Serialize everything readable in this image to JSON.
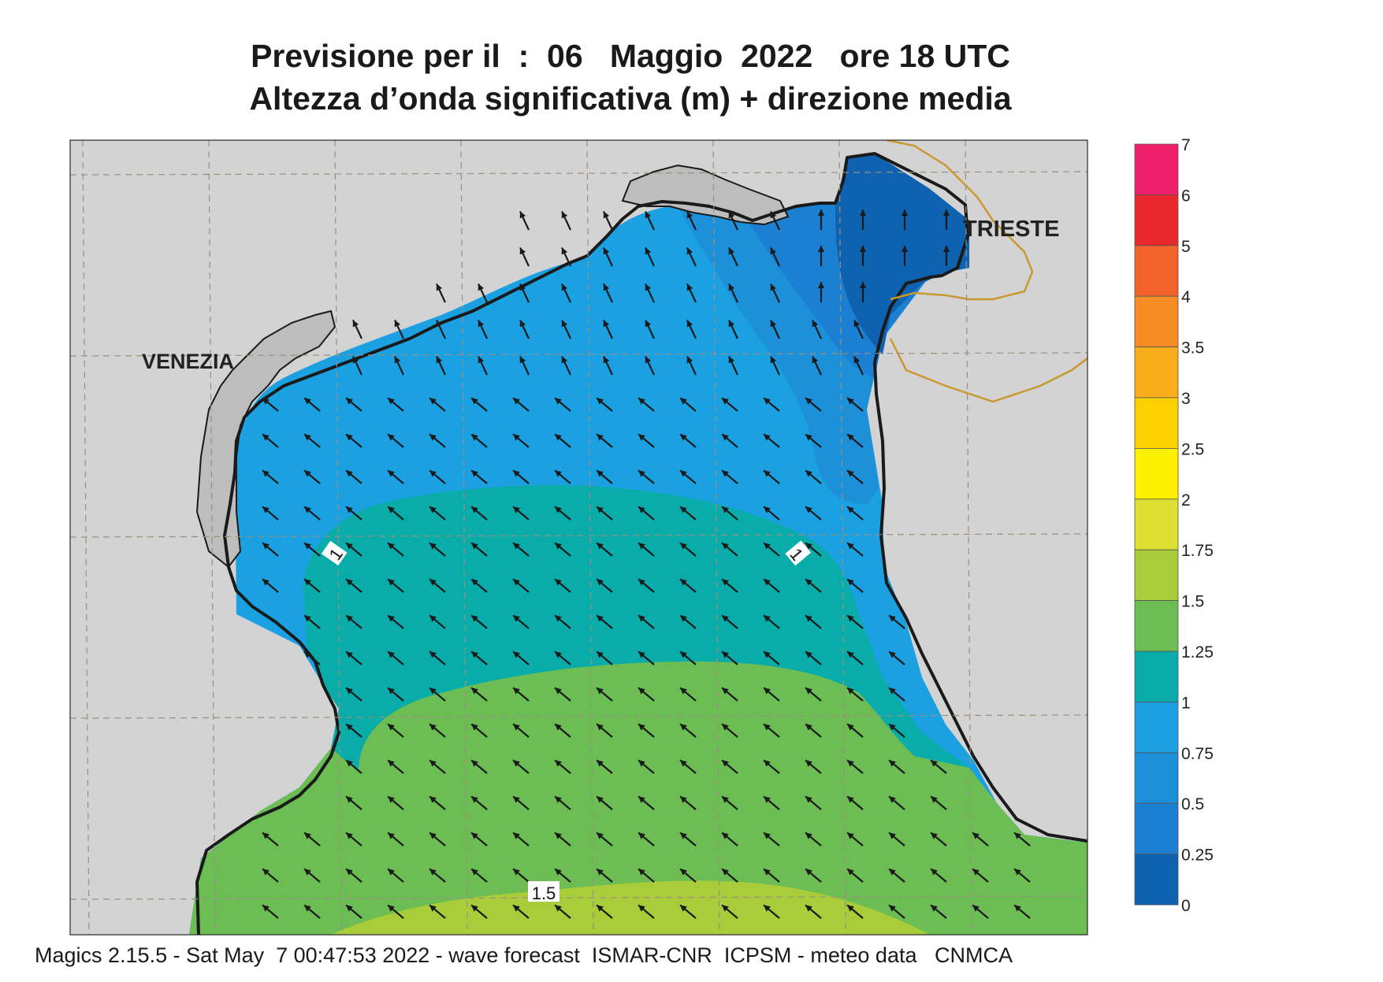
{
  "title": {
    "line1": "Previsione per il  :  06   Maggio  2022   ore 18 UTC",
    "line2": "Altezza d’onda significativa (m) + direzione media"
  },
  "map": {
    "cities": [
      "VENEZIA",
      "TRIESTE"
    ],
    "contour_labels": [
      "1",
      "1",
      "1.5"
    ],
    "colors": {
      "land": "#d3d3d3",
      "sea_0_0.25": "#0f62b0",
      "sea_0.25_0.5": "#1b80d2",
      "sea_0.5_0.75": "#1d90da",
      "sea_0.75_1": "#1ba0e2",
      "sea_1_1.25": "#0aaca9",
      "sea_1.25_1.5": "#6cbe54",
      "sea_1.5_1.75": "#a8cc3a",
      "coastline": "#1a1a1a",
      "border": "#c9982f",
      "grid": "#9a8f80"
    },
    "wave_direction": "NW"
  },
  "legend": {
    "labels": [
      "7",
      "6",
      "5",
      "4",
      "3.5",
      "3",
      "2.5",
      "2",
      "1.75",
      "1.5",
      "1.25",
      "1",
      "0.75",
      "0.5",
      "0.25",
      "0"
    ],
    "colors": [
      "#ee1f6a",
      "#e8282c",
      "#f2622a",
      "#f68d24",
      "#f9ad1a",
      "#fdd100",
      "#fdf100",
      "#dde033",
      "#a8cc3a",
      "#6cbe54",
      "#0aaca9",
      "#1ba0e2",
      "#1b8fd8",
      "#1b80d2",
      "#0f62b0"
    ]
  },
  "footer": "Magics 2.15.5 - Sat May  7 00:47:53 2022 - wave forecast  ISMAR-CNR  ICPSM - meteo data   CNMCA"
}
